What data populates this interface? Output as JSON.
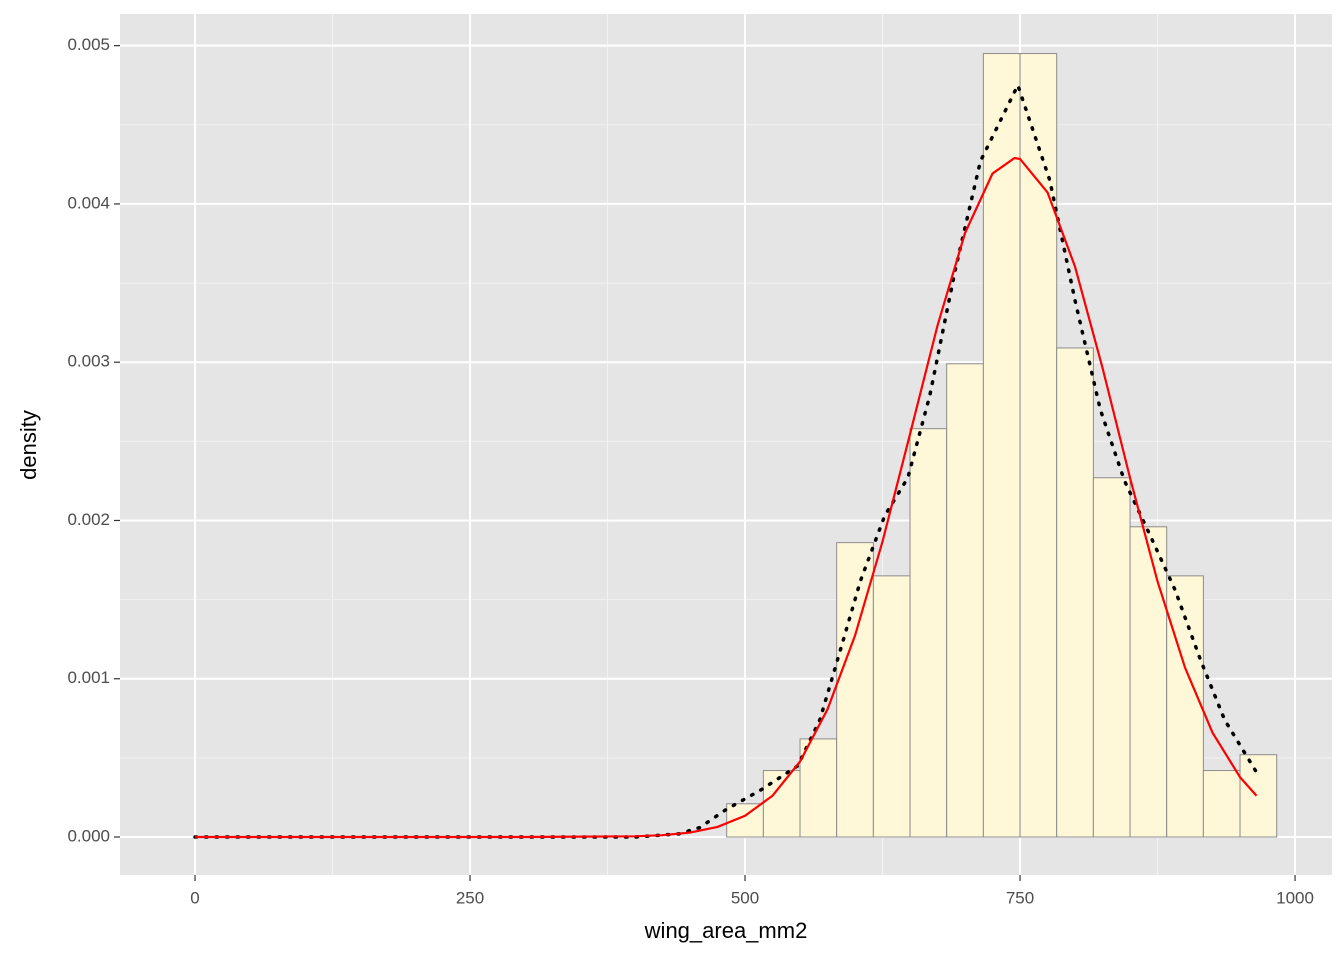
{
  "chart_data": {
    "type": "histogram",
    "x_label": "wing_area_mm2",
    "y_label": "density",
    "bins": [
      -16.67,
      16.67,
      50,
      83.33,
      116.67,
      150,
      183.33,
      216.67,
      250,
      283.33,
      316.67,
      350,
      383.33,
      416.67,
      450,
      483.33,
      516.67,
      550,
      583.33,
      616.67,
      650,
      683.33,
      716.67,
      750,
      783.33,
      816.67,
      850,
      883.33,
      916.67,
      950,
      983.33
    ],
    "values": [
      0,
      0,
      0,
      0,
      0,
      0,
      0,
      0,
      0,
      0,
      0,
      0,
      0,
      0,
      0,
      0.00021,
      0.00042,
      0.00062,
      0.00186,
      0.00165,
      0.00258,
      0.00299,
      0.00495,
      0.00495,
      0.00309,
      0.00227,
      0.00196,
      0.00165,
      0.00042,
      0.00052
    ],
    "fill": "#fff8d8",
    "stroke": "#8c8c8c",
    "curves": [
      {
        "color": "#000000",
        "style": "dotted",
        "x": [
          0,
          100,
          200,
          300,
          400,
          440,
          459,
          482,
          515,
          548,
          568,
          582,
          605,
          627,
          648,
          668,
          691,
          714,
          748,
          777,
          800,
          823,
          845,
          868,
          891,
          914,
          936,
          964
        ],
        "values": [
          0,
          0,
          0,
          0,
          0,
          2e-05,
          6e-05,
          0.00017,
          0.0003,
          0.00045,
          0.00074,
          0.00107,
          0.00162,
          0.00203,
          0.00227,
          0.00279,
          0.00358,
          0.00427,
          0.00475,
          0.00415,
          0.00339,
          0.0027,
          0.00225,
          0.00191,
          0.00156,
          0.00112,
          0.00074,
          0.00042
        ]
      },
      {
        "color": "#ff0000",
        "style": "solid",
        "x": [
          0,
          100,
          200,
          300,
          400,
          425,
          450,
          475,
          500,
          525,
          550,
          575,
          600,
          625,
          650,
          675,
          700,
          725,
          745,
          750,
          775,
          800,
          825,
          850,
          875,
          900,
          925,
          950,
          965
        ],
        "values": [
          0,
          0,
          0,
          0,
          4.4e-06,
          1.15e-05,
          2.8e-05,
          6.37e-05,
          0.000134,
          0.000261,
          0.000477,
          0.000807,
          0.001273,
          0.001867,
          0.002546,
          0.003232,
          0.003816,
          0.004192,
          0.00429,
          0.004284,
          0.004073,
          0.003603,
          0.002964,
          0.002269,
          0.001615,
          0.00107,
          0.000659,
          0.000378,
          0.000261
        ]
      }
    ],
    "xlim": [
      -68.2,
      1033.6
    ],
    "ylim": [
      -0.00024,
      0.0052
    ],
    "xticks": [
      0,
      250,
      500,
      750,
      1000
    ],
    "yticks": [
      {
        "value": 0,
        "label": "0.000"
      },
      0.001,
      0.002,
      0.003,
      0.004,
      0.005
    ],
    "grid": true,
    "panel_color": "#e5e5e5"
  }
}
